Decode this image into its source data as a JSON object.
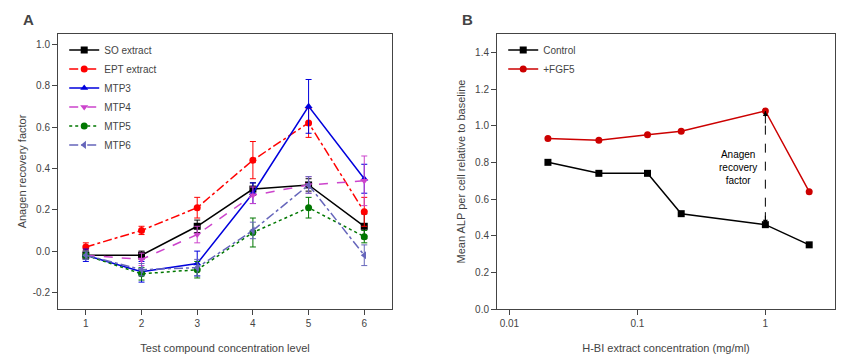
{
  "chart_data": [
    {
      "type": "line",
      "title": "A",
      "xlabel": "Test compound concentration level",
      "ylabel": "Anagen recovery factor",
      "xlim": [
        0.5,
        6.5
      ],
      "ylim": [
        -0.28,
        1.05
      ],
      "xticks": [
        1,
        2,
        3,
        4,
        5,
        6
      ],
      "yticks": [
        -0.2,
        {
          "value": 0.0,
          "label": "0.0"
        },
        0.2,
        0.4,
        0.6,
        0.8,
        {
          "value": 1.0,
          "label": "1.0"
        }
      ],
      "grid": false,
      "legend": "upper left",
      "x": [
        1,
        2,
        3,
        4,
        5,
        6
      ],
      "series": [
        {
          "name": "SO extract",
          "color": "#000000",
          "line_style": "solid",
          "marker": "square",
          "values": [
            -0.02,
            -0.02,
            0.12,
            0.3,
            0.32,
            0.12
          ],
          "yerr": [
            0.02,
            0.02,
            0.03,
            0.03,
            0.03,
            0.06
          ]
        },
        {
          "name": "EPT extract",
          "color": "#ff0000",
          "line_style": "dashdot",
          "marker": "circle",
          "values": [
            0.02,
            0.1,
            0.21,
            0.44,
            0.62,
            0.19
          ],
          "yerr": [
            0.02,
            0.02,
            0.05,
            0.09,
            0.07,
            0.07
          ]
        },
        {
          "name": "MTP3",
          "color": "#0000dd",
          "line_style": "solid",
          "marker": "triangle-up",
          "values": [
            -0.02,
            -0.1,
            -0.06,
            0.28,
            0.7,
            0.35
          ],
          "yerr": [
            0.03,
            0.05,
            0.06,
            0.05,
            0.13,
            0.07
          ]
        },
        {
          "name": "MTP4",
          "color": "#cc44cc",
          "line_style": "dashed",
          "marker": "triangle-down",
          "values": [
            -0.02,
            -0.04,
            0.08,
            0.27,
            0.32,
            0.34
          ],
          "yerr": [
            0.02,
            0.03,
            0.04,
            0.04,
            0.04,
            0.12
          ]
        },
        {
          "name": "MTP5",
          "color": "#007700",
          "line_style": "dotted",
          "marker": "circle",
          "values": [
            -0.02,
            -0.11,
            -0.09,
            0.09,
            0.21,
            0.07
          ],
          "yerr": [
            0.02,
            0.03,
            0.04,
            0.07,
            0.05,
            0.03
          ]
        },
        {
          "name": "MTP6",
          "color": "#6666bb",
          "line_style": "dashdot",
          "marker": "triangle-left",
          "values": [
            -0.02,
            -0.09,
            -0.08,
            0.1,
            0.32,
            -0.02
          ],
          "yerr": [
            0.02,
            0.03,
            0.04,
            0.04,
            0.04,
            0.05
          ]
        }
      ]
    },
    {
      "type": "line",
      "title": "B",
      "xlabel": "H-BI extract concentration (mg/ml)",
      "ylabel": "Mean ALP per cell relative to baseline",
      "log": "x",
      "xlim": [
        0.008,
        3.5
      ],
      "ylim": [
        0.0,
        1.5
      ],
      "xticks": [
        0.01,
        0.1,
        1
      ],
      "yticks": [
        {
          "value": 0.0,
          "label": "0.0"
        },
        0.2,
        0.4,
        0.6,
        0.8,
        {
          "value": 1.0,
          "label": "1.0"
        },
        1.2,
        1.4
      ],
      "grid": false,
      "legend": "upper left",
      "x": [
        0.02,
        0.05,
        0.12,
        0.22,
        1.0,
        2.2
      ],
      "series": [
        {
          "name": "Control",
          "color": "#000000",
          "line_style": "solid",
          "marker": "square",
          "values": [
            0.8,
            0.74,
            0.74,
            0.52,
            0.46,
            0.35
          ]
        },
        {
          "name": "+FGF5",
          "color": "#cc0000",
          "line_style": "solid",
          "marker": "circle",
          "values": [
            0.93,
            0.92,
            0.95,
            0.97,
            1.08,
            0.64
          ]
        }
      ],
      "annotations": [
        {
          "text": "Anagen\nrecovery\nfactor",
          "x": 1.0,
          "y": [
            0.46,
            1.08
          ]
        }
      ]
    }
  ]
}
